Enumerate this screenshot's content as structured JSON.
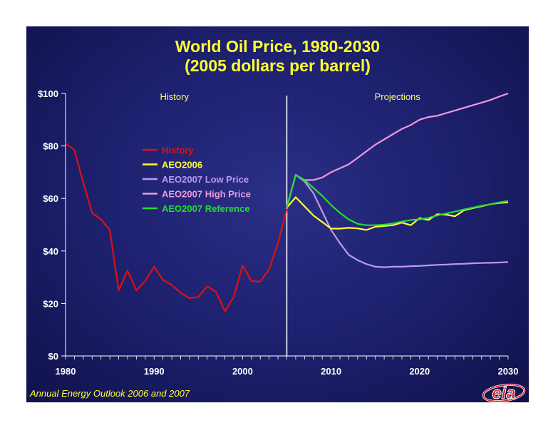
{
  "title_line1": "World Oil Price, 1980-2030",
  "title_line2": "(2005 dollars per barrel)",
  "footer": "Annual Energy Outlook 2006 and 2007",
  "logo_text": "eia",
  "colors": {
    "background": "#1c1f6b",
    "title": "#ffff33",
    "History": "#dd1111",
    "AEO2006": "#ffff33",
    "AEO2007 Low Price": "#bb99ee",
    "AEO2007 High Price": "#ee99dd",
    "AEO2007 Reference": "#22dd33"
  },
  "chart_data": {
    "type": "line",
    "title": "World Oil Price, 1980-2030",
    "subtitle": "(2005 dollars per barrel)",
    "xlabel": "",
    "ylabel": "",
    "xlim": [
      1980,
      2030
    ],
    "ylim": [
      0,
      100
    ],
    "x_ticks": [
      1980,
      1990,
      2000,
      2010,
      2020,
      2030
    ],
    "y_ticks": [
      0,
      20,
      40,
      60,
      80,
      100
    ],
    "y_tick_labels": [
      "$0",
      "$20",
      "$40",
      "$60",
      "$80",
      "$100"
    ],
    "grid": false,
    "legend_position": "upper-left",
    "divider_year": 2005,
    "region_labels": [
      "History",
      "Projections"
    ],
    "series": [
      {
        "name": "History",
        "x": [
          1980,
          1981,
          1982,
          1983,
          1984,
          1985,
          1986,
          1987,
          1988,
          1989,
          1990,
          1991,
          1992,
          1993,
          1994,
          1995,
          1996,
          1997,
          1998,
          1999,
          2000,
          2001,
          2002,
          2003,
          2004,
          2005
        ],
        "values": [
          81,
          78.5,
          66,
          54.5,
          52,
          48,
          25,
          32.5,
          25,
          28.5,
          34,
          29,
          27,
          24,
          22,
          22.5,
          26.5,
          24.5,
          17,
          22.5,
          34.5,
          28.5,
          28.3,
          33,
          43,
          56
        ]
      },
      {
        "name": "AEO2006",
        "x": [
          2005,
          2006,
          2007,
          2008,
          2009,
          2010,
          2011,
          2012,
          2013,
          2014,
          2015,
          2016,
          2017,
          2018,
          2019,
          2020,
          2021,
          2022,
          2023,
          2024,
          2025,
          2026,
          2027,
          2028,
          2029,
          2030
        ],
        "values": [
          56.5,
          60.5,
          57,
          53.5,
          51,
          48.5,
          48.5,
          48.8,
          48.6,
          48,
          49.2,
          49.5,
          49.8,
          50.8,
          49.8,
          52.5,
          51.8,
          54,
          53.8,
          53.2,
          55.5,
          56.3,
          57,
          57.8,
          58.3,
          58.5
        ]
      },
      {
        "name": "AEO2007 Low Price",
        "x": [
          2005,
          2006,
          2007,
          2008,
          2009,
          2010,
          2011,
          2012,
          2013,
          2014,
          2015,
          2016,
          2017,
          2018,
          2019,
          2020,
          2021,
          2022,
          2023,
          2024,
          2025,
          2026,
          2027,
          2028,
          2029,
          2030
        ],
        "values": [
          56.5,
          69,
          66.5,
          62,
          55,
          48,
          43,
          38.5,
          36.5,
          35,
          34,
          33.8,
          34,
          34,
          34.2,
          34.3,
          34.5,
          34.7,
          34.8,
          35,
          35.1,
          35.3,
          35.4,
          35.5,
          35.6,
          35.8
        ]
      },
      {
        "name": "AEO2007 High Price",
        "x": [
          2005,
          2006,
          2007,
          2008,
          2009,
          2010,
          2011,
          2012,
          2013,
          2014,
          2015,
          2016,
          2017,
          2018,
          2019,
          2020,
          2021,
          2022,
          2023,
          2024,
          2025,
          2026,
          2027,
          2028,
          2029,
          2030
        ],
        "values": [
          56.5,
          69,
          67,
          67,
          68,
          70,
          71.5,
          73,
          75.5,
          78,
          80.5,
          82.5,
          84.5,
          86.5,
          88,
          90,
          91,
          91.5,
          92.5,
          93.5,
          94.5,
          95.5,
          96.5,
          97.5,
          98.8,
          100
        ]
      },
      {
        "name": "AEO2007 Reference",
        "x": [
          2005,
          2006,
          2007,
          2008,
          2009,
          2010,
          2011,
          2012,
          2013,
          2014,
          2015,
          2016,
          2017,
          2018,
          2019,
          2020,
          2021,
          2022,
          2023,
          2024,
          2025,
          2026,
          2027,
          2028,
          2029,
          2030
        ],
        "values": [
          56.5,
          69,
          67,
          64,
          61,
          57.5,
          54.5,
          52,
          50.3,
          49.8,
          49.8,
          50,
          50.5,
          51.2,
          51.8,
          52,
          52.6,
          53.5,
          54.3,
          55,
          55.8,
          56.5,
          57.2,
          57.8,
          58.5,
          59
        ]
      }
    ]
  }
}
